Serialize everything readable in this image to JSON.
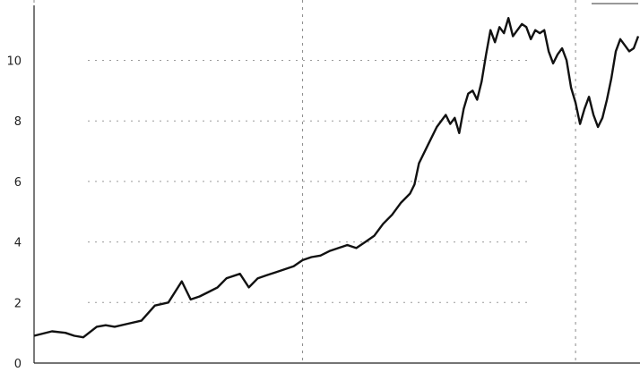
{
  "chart_data": {
    "type": "line",
    "title": "",
    "xlabel": "",
    "ylabel": "",
    "ylim": [
      0,
      11.7
    ],
    "xlim": [
      0,
      270
    ],
    "yticks": [
      {
        "value": 0,
        "label": "0"
      },
      {
        "value": 2,
        "label": "2"
      },
      {
        "value": 4,
        "label": "4"
      },
      {
        "value": 6,
        "label": "6"
      },
      {
        "value": 8,
        "label": "8"
      },
      {
        "value": 10,
        "label": "10"
      }
    ],
    "grid": "horizontal-dotted",
    "vertical_markers": [
      0,
      120,
      242
    ],
    "legend": "none",
    "series": [
      {
        "color": "#111111",
        "x": [
          0,
          8,
          14,
          18,
          22,
          28,
          32,
          36,
          42,
          48,
          54,
          60,
          66,
          70,
          74,
          78,
          82,
          86,
          92,
          96,
          100,
          104,
          108,
          112,
          116,
          120,
          124,
          128,
          132,
          136,
          140,
          144,
          148,
          152,
          156,
          160,
          164,
          168,
          170,
          172,
          176,
          180,
          184,
          186,
          188,
          190,
          192,
          194,
          196,
          198,
          200,
          202,
          204,
          206,
          208,
          210,
          212,
          214,
          216,
          218,
          220,
          222,
          224,
          226,
          228,
          230,
          232,
          234,
          236,
          238,
          240,
          242,
          244,
          246,
          248,
          250,
          252,
          254,
          256,
          258,
          260,
          262,
          264,
          266,
          268,
          270
        ],
        "values": [
          0.9,
          1.05,
          1.0,
          0.9,
          0.85,
          1.2,
          1.25,
          1.2,
          1.3,
          1.4,
          1.9,
          2.0,
          2.7,
          2.1,
          2.2,
          2.35,
          2.5,
          2.8,
          2.95,
          2.5,
          2.8,
          2.9,
          3.0,
          3.1,
          3.2,
          3.4,
          3.5,
          3.55,
          3.7,
          3.8,
          3.9,
          3.8,
          4.0,
          4.2,
          4.6,
          4.9,
          5.3,
          5.6,
          5.9,
          6.6,
          7.2,
          7.8,
          8.2,
          7.9,
          8.1,
          7.6,
          8.4,
          8.9,
          9.0,
          8.7,
          9.3,
          10.2,
          11.0,
          10.6,
          11.1,
          10.9,
          11.4,
          10.8,
          11.0,
          11.2,
          11.1,
          10.7,
          11.0,
          10.9,
          11.0,
          10.3,
          9.9,
          10.2,
          10.4,
          10.0,
          9.1,
          8.6,
          7.9,
          8.4,
          8.8,
          8.2,
          7.8,
          8.1,
          8.7,
          9.4,
          10.3,
          10.7,
          10.5,
          10.3,
          10.4,
          10.8
        ]
      }
    ]
  }
}
